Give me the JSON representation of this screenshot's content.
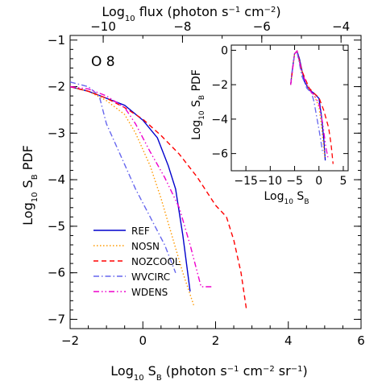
{
  "chart_data": [
    {
      "type": "line",
      "panel": "main",
      "annotation": "O 8",
      "xlabel_parts": [
        "Log",
        "10",
        " S",
        "B",
        " (photon s",
        "-1",
        " cm",
        "-2",
        " sr",
        "-1",
        ")"
      ],
      "ylabel_parts": [
        "Log",
        "10",
        " S",
        "B",
        " PDF"
      ],
      "top_xlabel_parts": [
        "Log",
        "10",
        " flux (photon s",
        "-1",
        " cm",
        "-2",
        ")"
      ],
      "xlim": [
        -2,
        6
      ],
      "ylim": [
        -7.2,
        -0.9
      ],
      "xticks": [
        -2,
        0,
        2,
        4,
        6
      ],
      "xtick_labels": [
        "−2",
        "0",
        "2",
        "4",
        "6"
      ],
      "yticks": [
        -7,
        -6,
        -5,
        -4,
        -3,
        -2,
        -1
      ],
      "ytick_labels": [
        "−7",
        "−6",
        "−5",
        "−4",
        "−3",
        "−2",
        "−1"
      ],
      "top_ticks_at_bottom_x": [
        -1.09,
        1.09,
        3.27,
        5.45
      ],
      "top_tick_labels": [
        "−10",
        "−8",
        "−6",
        "−4"
      ],
      "grid": false,
      "legend_position": "bottom-left",
      "series": [
        {
          "name": "REF",
          "color": "#0000cc",
          "dash": "solid",
          "x": [
            -2,
            -1.5,
            -1,
            -0.5,
            0,
            0.4,
            0.7,
            0.9,
            1.1,
            1.3
          ],
          "y": [
            -2.0,
            -2.1,
            -2.25,
            -2.4,
            -2.72,
            -3.1,
            -3.7,
            -4.2,
            -5.2,
            -6.4
          ]
        },
        {
          "name": "NOSN",
          "color": "#ff9900",
          "dash": "dot",
          "x": [
            -2,
            -1.5,
            -1,
            -0.5,
            -0.2,
            0.2,
            0.5,
            0.8,
            1.1,
            1.4
          ],
          "y": [
            -2.0,
            -2.1,
            -2.3,
            -2.6,
            -3.0,
            -3.7,
            -4.4,
            -5.2,
            -6.0,
            -6.7
          ]
        },
        {
          "name": "NOZCOOL",
          "color": "#ff0000",
          "dash": "dash",
          "x": [
            -2,
            -1.5,
            -1,
            -0.5,
            0,
            0.5,
            1.0,
            1.5,
            2.0,
            2.3,
            2.5,
            2.7,
            2.85
          ],
          "y": [
            -2.0,
            -2.1,
            -2.25,
            -2.45,
            -2.7,
            -3.05,
            -3.45,
            -3.95,
            -4.55,
            -4.8,
            -5.3,
            -6.0,
            -6.8
          ]
        },
        {
          "name": "WVCIRC",
          "color": "#6666ee",
          "dash": "dashdot",
          "x": [
            -2,
            -1.5,
            -1.2,
            -1.0,
            -0.6,
            -0.2,
            0.2,
            0.6,
            0.9
          ],
          "y": [
            -1.9,
            -2.0,
            -2.2,
            -2.8,
            -3.5,
            -4.2,
            -4.8,
            -5.4,
            -6.0
          ]
        },
        {
          "name": "WDENS",
          "color": "#ee00cc",
          "dash": "dashdotdot",
          "x": [
            -2,
            -1.5,
            -1,
            -0.5,
            -0.2,
            0.2,
            0.6,
            1.0,
            1.3,
            1.6,
            1.9
          ],
          "y": [
            -2.0,
            -2.05,
            -2.2,
            -2.45,
            -2.8,
            -3.4,
            -3.95,
            -4.6,
            -5.4,
            -6.3,
            -6.3
          ]
        }
      ]
    },
    {
      "type": "line",
      "panel": "inset",
      "xlabel_parts": [
        "Log",
        "10",
        " S",
        "B"
      ],
      "ylabel_parts": [
        "Log",
        "10",
        " S",
        "B",
        " PDF"
      ],
      "xlim": [
        -18,
        6
      ],
      "ylim": [
        -7,
        0.3
      ],
      "xticks": [
        -15,
        -10,
        -5,
        0,
        5
      ],
      "xtick_labels": [
        "−15",
        "−10",
        "−5",
        "0",
        "5"
      ],
      "yticks": [
        -6,
        -4,
        -2,
        0
      ],
      "ytick_labels": [
        "−6",
        "−4",
        "−2",
        "0"
      ],
      "series": [
        {
          "name": "REF",
          "color": "#0000cc",
          "dash": "solid",
          "x": [
            -5.8,
            -5.5,
            -5.0,
            -4.5,
            -4.0,
            -3.0,
            -2.0,
            -1.0,
            0,
            0.5,
            1.0,
            1.3
          ],
          "y": [
            -2.0,
            -1.2,
            -0.2,
            -0.05,
            -0.5,
            -1.8,
            -2.3,
            -2.5,
            -2.8,
            -3.8,
            -5.2,
            -6.4
          ]
        },
        {
          "name": "NOSN",
          "color": "#ff9900",
          "dash": "dot",
          "x": [
            -5.8,
            -5.0,
            -4.5,
            -3.5,
            -2.0,
            -1.0,
            0,
            0.6,
            1.2
          ],
          "y": [
            -2.0,
            -0.2,
            -0.05,
            -1.2,
            -2.3,
            -2.6,
            -3.3,
            -4.6,
            -6.2
          ]
        },
        {
          "name": "NOZCOOL",
          "color": "#ff0000",
          "dash": "dash",
          "x": [
            -5.8,
            -5.0,
            -4.5,
            -3.5,
            -2.0,
            -1.0,
            0,
            1.0,
            2.0,
            2.5,
            2.9
          ],
          "y": [
            -2.0,
            -0.2,
            -0.05,
            -1.2,
            -2.2,
            -2.5,
            -2.75,
            -3.5,
            -4.5,
            -5.5,
            -6.6
          ]
        },
        {
          "name": "WVCIRC",
          "color": "#6666ee",
          "dash": "dashdot",
          "x": [
            -5.8,
            -5.0,
            -4.5,
            -3.5,
            -2.5,
            -1.5,
            -1.0,
            -0.5,
            0,
            0.8
          ],
          "y": [
            -2.0,
            -0.2,
            -0.1,
            -1.5,
            -2.2,
            -2.5,
            -3.0,
            -3.8,
            -4.6,
            -6.0
          ]
        },
        {
          "name": "WDENS",
          "color": "#ee00cc",
          "dash": "dashdotdot",
          "x": [
            -5.8,
            -5.0,
            -4.5,
            -3.5,
            -2.0,
            -1.0,
            0,
            0.8,
            1.4,
            1.9
          ],
          "y": [
            -2.0,
            -0.2,
            -0.05,
            -1.3,
            -2.3,
            -2.6,
            -3.1,
            -4.3,
            -5.6,
            -6.3
          ]
        }
      ]
    }
  ]
}
